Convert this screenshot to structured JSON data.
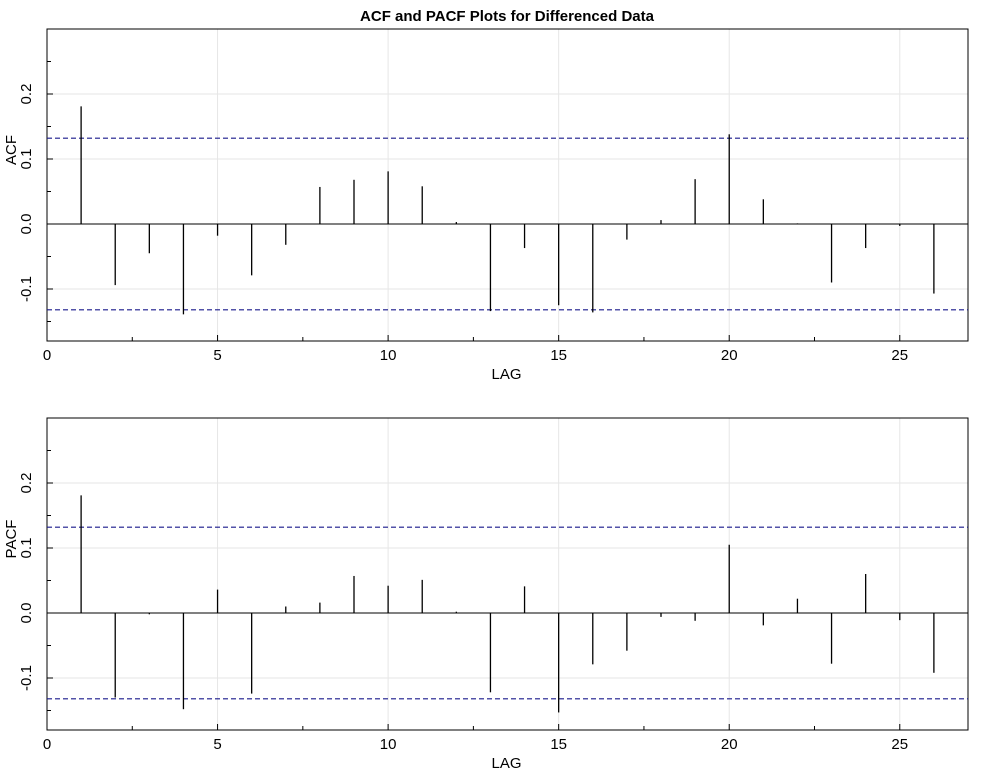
{
  "title": "ACF and PACF Plots for Differenced Data",
  "colors": {
    "bars": "#000000",
    "ci_line": "#1a1a8c",
    "grid": "#e6e6e6",
    "frame": "#000000"
  },
  "chart_data": [
    {
      "type": "bar",
      "panel": "ACF",
      "xlabel": "LAG",
      "ylabel": "ACF",
      "xlim": [
        0,
        27
      ],
      "ylim": [
        -0.18,
        0.3
      ],
      "xticks": [
        0,
        5,
        10,
        15,
        20,
        25
      ],
      "yticks": [
        -0.1,
        0.0,
        0.1,
        0.2
      ],
      "yticklabels": [
        "-0.1",
        "0.0",
        "0.1",
        "0.2"
      ],
      "grid": true,
      "confidence_band": [
        -0.132,
        0.132
      ],
      "lags": [
        1,
        2,
        3,
        4,
        5,
        6,
        7,
        8,
        9,
        10,
        11,
        12,
        13,
        14,
        15,
        16,
        17,
        18,
        19,
        20,
        21,
        22,
        23,
        24,
        25,
        26
      ],
      "values": [
        0.181,
        -0.094,
        -0.045,
        -0.139,
        -0.018,
        -0.079,
        -0.032,
        0.057,
        0.068,
        0.081,
        0.058,
        0.003,
        -0.134,
        -0.037,
        -0.125,
        -0.136,
        -0.024,
        0.006,
        0.069,
        0.138,
        0.038,
        0.001,
        -0.09,
        -0.037,
        -0.003,
        -0.107
      ]
    },
    {
      "type": "bar",
      "panel": "PACF",
      "xlabel": "LAG",
      "ylabel": "PACF",
      "xlim": [
        0,
        27
      ],
      "ylim": [
        -0.18,
        0.3
      ],
      "xticks": [
        0,
        5,
        10,
        15,
        20,
        25
      ],
      "yticks": [
        -0.1,
        0.0,
        0.1,
        0.2
      ],
      "yticklabels": [
        "-0.1",
        "0.0",
        "0.1",
        "0.2"
      ],
      "grid": true,
      "confidence_band": [
        -0.132,
        0.132
      ],
      "lags": [
        1,
        2,
        3,
        4,
        5,
        6,
        7,
        8,
        9,
        10,
        11,
        12,
        13,
        14,
        15,
        16,
        17,
        18,
        19,
        20,
        21,
        22,
        23,
        24,
        25,
        26
      ],
      "values": [
        0.181,
        -0.13,
        -0.002,
        -0.148,
        0.036,
        -0.124,
        0.01,
        0.016,
        0.057,
        0.042,
        0.051,
        0.002,
        -0.122,
        0.041,
        -0.153,
        -0.079,
        -0.058,
        -0.006,
        -0.012,
        0.105,
        -0.019,
        0.022,
        -0.078,
        0.06,
        -0.011,
        -0.092
      ]
    }
  ]
}
